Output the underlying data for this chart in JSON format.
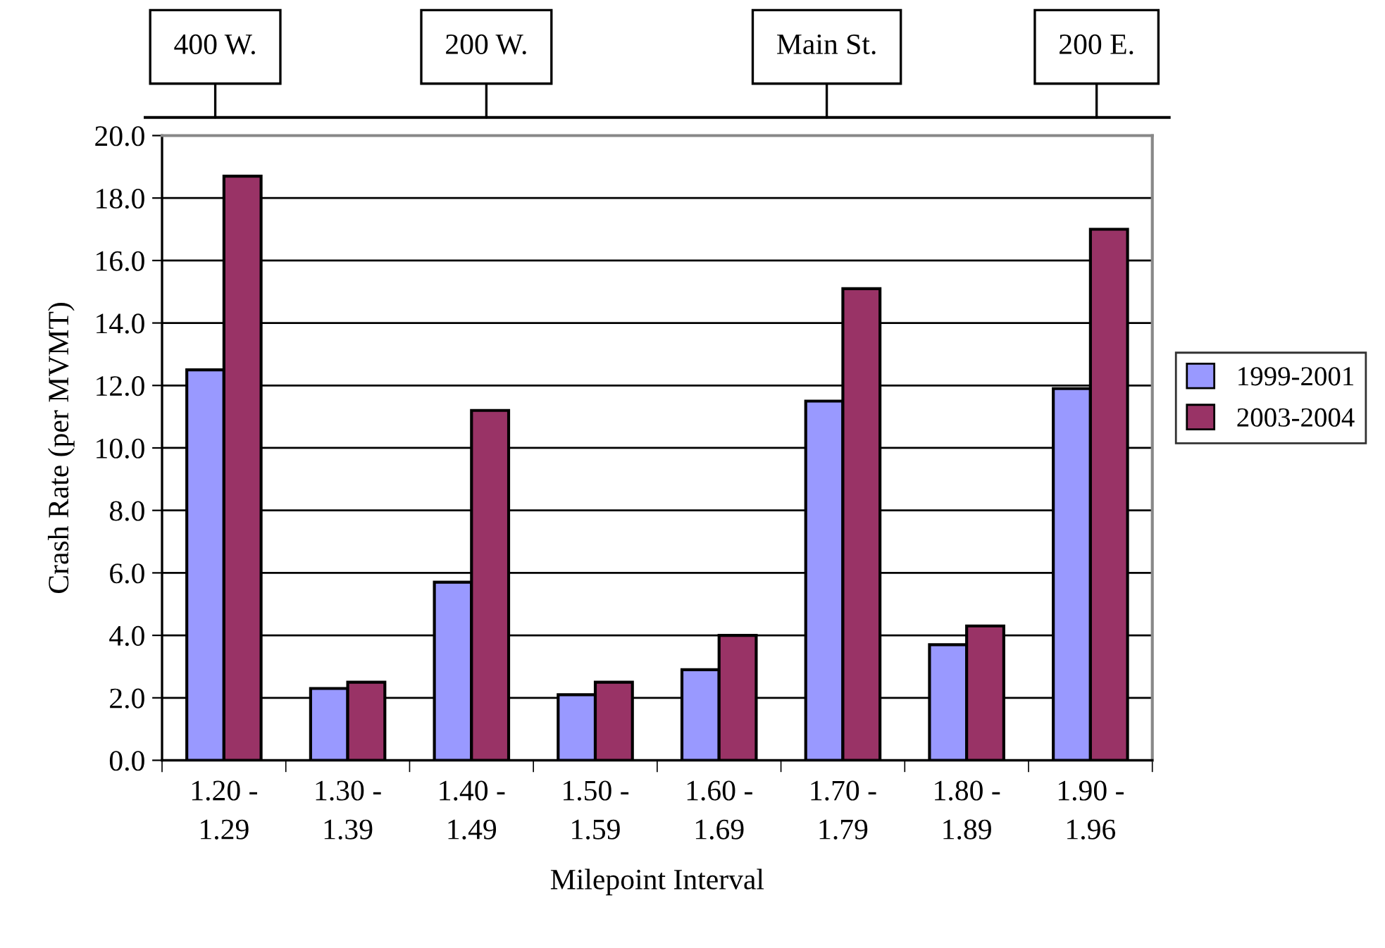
{
  "chart_data": {
    "type": "bar",
    "xlabel": "Milepoint Interval",
    "ylabel": "Crash Rate (per MVMT)",
    "categories": [
      "1.20 -\n1.29",
      "1.30 -\n1.39",
      "1.40 -\n1.49",
      "1.50 -\n1.59",
      "1.60 -\n1.69",
      "1.70 -\n1.79",
      "1.80 -\n1.89",
      "1.90 -\n1.96"
    ],
    "series": [
      {
        "name": "1999-2001",
        "color": "#9999ff",
        "values": [
          12.5,
          2.3,
          5.7,
          2.1,
          2.9,
          11.5,
          3.7,
          11.9
        ]
      },
      {
        "name": "2003-2004",
        "color": "#993366",
        "values": [
          18.7,
          2.5,
          11.2,
          2.5,
          4.0,
          15.1,
          4.3,
          17.0
        ]
      }
    ],
    "ylim": [
      0,
      20
    ],
    "yticks": [
      {
        "value": 0,
        "label": "0.0"
      },
      {
        "value": 2,
        "label": "2.0"
      },
      {
        "value": 4,
        "label": "4.0"
      },
      {
        "value": 6,
        "label": "6.0"
      },
      {
        "value": 8,
        "label": "8.0"
      },
      {
        "value": 10,
        "label": "10.0"
      },
      {
        "value": 12,
        "label": "12.0"
      },
      {
        "value": 14,
        "label": "14.0"
      },
      {
        "value": 16,
        "label": "16.0"
      },
      {
        "value": 18,
        "label": "18.0"
      },
      {
        "value": 20,
        "label": "20.0"
      }
    ],
    "grid": "y",
    "legend": "right",
    "annotations": [
      "400 W.",
      "200 W.",
      "Main St.",
      "200 E."
    ]
  }
}
